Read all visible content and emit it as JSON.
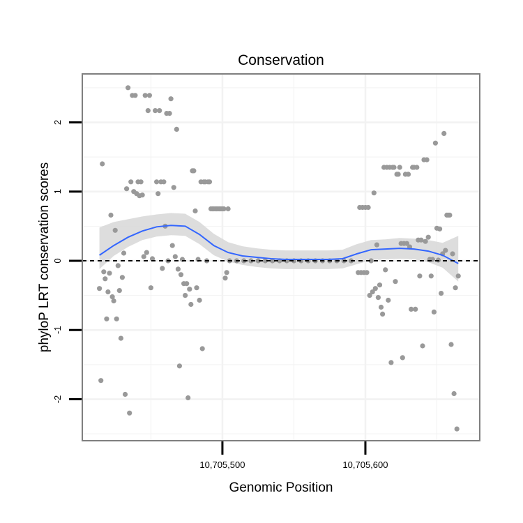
{
  "chart_data": {
    "type": "scatter",
    "title": "Conservation",
    "xlabel": "Genomic Position",
    "ylabel": "phyloP LRT conservation scores",
    "xlim": [
      10705402,
      10705680
    ],
    "ylim": [
      -2.6,
      2.7
    ],
    "x_ticks": [
      {
        "value": 10705500,
        "label": "10,705,500"
      },
      {
        "value": 10705600,
        "label": "10,705,600"
      }
    ],
    "y_ticks": [
      {
        "value": -2,
        "label": "-2"
      },
      {
        "value": -1,
        "label": "-1"
      },
      {
        "value": 0,
        "label": "0"
      },
      {
        "value": 1,
        "label": "1"
      },
      {
        "value": 2,
        "label": "2"
      }
    ],
    "x_minor_grid": [
      10705450,
      10705550,
      10705650
    ],
    "y_minor_grid": [
      -2.5,
      -1.5,
      -0.5,
      0.5,
      1.5,
      2.5
    ],
    "reference_line": {
      "y": 0,
      "style": "dashed"
    },
    "colors": {
      "points": "#999999",
      "smooth": "#3366ff",
      "ribbon": "#d9d9d9",
      "panel_border": "#7f7f7f",
      "grid": "#f2f2f2"
    },
    "points": [
      [
        10705414,
        -0.4
      ],
      [
        10705415,
        -1.73
      ],
      [
        10705416,
        1.4
      ],
      [
        10705417,
        -0.16
      ],
      [
        10705418,
        -0.26
      ],
      [
        10705419,
        -0.84
      ],
      [
        10705420,
        -0.45
      ],
      [
        10705421,
        -0.18
      ],
      [
        10705422,
        0.66
      ],
      [
        10705423,
        -0.52
      ],
      [
        10705424,
        -0.58
      ],
      [
        10705425,
        0.44
      ],
      [
        10705426,
        -0.84
      ],
      [
        10705427,
        -0.07
      ],
      [
        10705428,
        -0.43
      ],
      [
        10705429,
        -1.12
      ],
      [
        10705430,
        -0.24
      ],
      [
        10705431,
        0.11
      ],
      [
        10705432,
        -1.93
      ],
      [
        10705433,
        1.04
      ],
      [
        10705434,
        2.5
      ],
      [
        10705435,
        -2.2
      ],
      [
        10705436,
        1.14
      ],
      [
        10705437,
        2.39
      ],
      [
        10705438,
        1.0
      ],
      [
        10705439,
        2.39
      ],
      [
        10705440,
        0.97
      ],
      [
        10705441,
        1.14
      ],
      [
        10705442,
        0.94
      ],
      [
        10705443,
        1.14
      ],
      [
        10705444,
        0.95
      ],
      [
        10705445,
        0.06
      ],
      [
        10705446,
        2.39
      ],
      [
        10705447,
        0.12
      ],
      [
        10705448,
        2.17
      ],
      [
        10705449,
        2.39
      ],
      [
        10705450,
        -0.39
      ],
      [
        10705451,
        0.03
      ],
      [
        10705453,
        2.17
      ],
      [
        10705454,
        1.14
      ],
      [
        10705455,
        0.97
      ],
      [
        10705456,
        2.17
      ],
      [
        10705457,
        1.14
      ],
      [
        10705458,
        -0.11
      ],
      [
        10705459,
        1.14
      ],
      [
        10705460,
        0.5
      ],
      [
        10705461,
        2.13
      ],
      [
        10705462,
        0.0
      ],
      [
        10705463,
        2.13
      ],
      [
        10705464,
        2.34
      ],
      [
        10705465,
        0.22
      ],
      [
        10705466,
        1.06
      ],
      [
        10705467,
        0.06
      ],
      [
        10705468,
        1.9
      ],
      [
        10705469,
        -0.12
      ],
      [
        10705470,
        -1.52
      ],
      [
        10705471,
        -0.2
      ],
      [
        10705472,
        0.02
      ],
      [
        10705473,
        -0.33
      ],
      [
        10705474,
        -0.5
      ],
      [
        10705475,
        -0.33
      ],
      [
        10705476,
        -1.98
      ],
      [
        10705477,
        -0.41
      ],
      [
        10705478,
        -0.63
      ],
      [
        10705479,
        1.3
      ],
      [
        10705480,
        1.3
      ],
      [
        10705481,
        0.72
      ],
      [
        10705482,
        -0.39
      ],
      [
        10705483,
        0.02
      ],
      [
        10705484,
        -0.57
      ],
      [
        10705485,
        1.14
      ],
      [
        10705486,
        -1.27
      ],
      [
        10705487,
        1.14
      ],
      [
        10705488,
        1.14
      ],
      [
        10705489,
        0.0
      ],
      [
        10705490,
        1.14
      ],
      [
        10705491,
        1.14
      ],
      [
        10705492,
        0.75
      ],
      [
        10705493,
        0.75
      ],
      [
        10705494,
        0.75
      ],
      [
        10705495,
        0.75
      ],
      [
        10705496,
        0.75
      ],
      [
        10705497,
        0.75
      ],
      [
        10705498,
        0.75
      ],
      [
        10705499,
        0.75
      ],
      [
        10705500,
        0.75
      ],
      [
        10705501,
        0.75
      ],
      [
        10705502,
        -0.25
      ],
      [
        10705503,
        -0.17
      ],
      [
        10705504,
        0.75
      ],
      [
        10705505,
        0.0
      ],
      [
        10705510,
        0.0
      ],
      [
        10705515,
        0.0
      ],
      [
        10705520,
        0.0
      ],
      [
        10705525,
        0.0
      ],
      [
        10705530,
        0.0
      ],
      [
        10705535,
        0.0
      ],
      [
        10705540,
        0.0
      ],
      [
        10705545,
        0.0
      ],
      [
        10705550,
        0.0
      ],
      [
        10705555,
        0.0
      ],
      [
        10705560,
        0.0
      ],
      [
        10705565,
        0.0
      ],
      [
        10705570,
        0.0
      ],
      [
        10705575,
        0.0
      ],
      [
        10705580,
        0.0
      ],
      [
        10705585,
        0.0
      ],
      [
        10705590,
        0.0
      ],
      [
        10705595,
        -0.17
      ],
      [
        10705596,
        0.77
      ],
      [
        10705597,
        -0.17
      ],
      [
        10705598,
        0.77
      ],
      [
        10705599,
        -0.17
      ],
      [
        10705600,
        0.77
      ],
      [
        10705601,
        -0.17
      ],
      [
        10705602,
        0.77
      ],
      [
        10705603,
        -0.5
      ],
      [
        10705604,
        0.0
      ],
      [
        10705605,
        -0.45
      ],
      [
        10705606,
        0.98
      ],
      [
        10705607,
        -0.4
      ],
      [
        10705608,
        0.23
      ],
      [
        10705609,
        -0.53
      ],
      [
        10705610,
        -0.35
      ],
      [
        10705611,
        -0.67
      ],
      [
        10705612,
        -0.77
      ],
      [
        10705613,
        1.35
      ],
      [
        10705614,
        -0.13
      ],
      [
        10705615,
        1.35
      ],
      [
        10705616,
        -0.57
      ],
      [
        10705617,
        1.35
      ],
      [
        10705618,
        -1.47
      ],
      [
        10705619,
        1.35
      ],
      [
        10705620,
        1.35
      ],
      [
        10705621,
        -0.3
      ],
      [
        10705622,
        1.25
      ],
      [
        10705623,
        1.25
      ],
      [
        10705624,
        1.35
      ],
      [
        10705625,
        0.25
      ],
      [
        10705626,
        -1.4
      ],
      [
        10705627,
        0.25
      ],
      [
        10705628,
        1.25
      ],
      [
        10705629,
        0.25
      ],
      [
        10705630,
        1.25
      ],
      [
        10705631,
        0.2
      ],
      [
        10705632,
        -0.7
      ],
      [
        10705633,
        1.35
      ],
      [
        10705634,
        1.35
      ],
      [
        10705635,
        -0.7
      ],
      [
        10705636,
        1.35
      ],
      [
        10705637,
        0.3
      ],
      [
        10705638,
        -0.22
      ],
      [
        10705639,
        0.3
      ],
      [
        10705640,
        -1.23
      ],
      [
        10705641,
        1.46
      ],
      [
        10705642,
        0.28
      ],
      [
        10705643,
        1.46
      ],
      [
        10705644,
        0.34
      ],
      [
        10705645,
        0.02
      ],
      [
        10705646,
        -0.22
      ],
      [
        10705647,
        0.02
      ],
      [
        10705648,
        -0.74
      ],
      [
        10705649,
        1.7
      ],
      [
        10705650,
        0.47
      ],
      [
        10705651,
        0.01
      ],
      [
        10705652,
        0.46
      ],
      [
        10705653,
        -0.47
      ],
      [
        10705654,
        0.1
      ],
      [
        10705655,
        1.84
      ],
      [
        10705656,
        0.15
      ],
      [
        10705657,
        0.66
      ],
      [
        10705658,
        0.66
      ],
      [
        10705659,
        0.66
      ],
      [
        10705660,
        -1.21
      ],
      [
        10705661,
        0.1
      ],
      [
        10705662,
        -1.92
      ],
      [
        10705663,
        -0.39
      ],
      [
        10705664,
        -2.43
      ],
      [
        10705665,
        -0.22
      ]
    ],
    "smooth_x": [
      10705414,
      10705424,
      10705434,
      10705444,
      10705454,
      10705464,
      10705474,
      10705484,
      10705494,
      10705504,
      10705514,
      10705524,
      10705534,
      10705544,
      10705554,
      10705564,
      10705574,
      10705584,
      10705594,
      10705604,
      10705614,
      10705624,
      10705634,
      10705644,
      10705654,
      10705665
    ],
    "smooth_y": [
      0.08,
      0.22,
      0.34,
      0.43,
      0.49,
      0.51,
      0.5,
      0.38,
      0.22,
      0.12,
      0.07,
      0.05,
      0.03,
      0.02,
      0.02,
      0.02,
      0.02,
      0.03,
      0.1,
      0.16,
      0.17,
      0.18,
      0.17,
      0.14,
      0.08,
      -0.04
    ],
    "ribbon_lower": [
      -0.12,
      0.07,
      0.2,
      0.3,
      0.35,
      0.37,
      0.36,
      0.24,
      0.08,
      -0.01,
      -0.06,
      -0.09,
      -0.11,
      -0.12,
      -0.12,
      -0.12,
      -0.12,
      -0.11,
      -0.05,
      0.01,
      0.02,
      0.03,
      0.02,
      -0.02,
      -0.1,
      -0.3
    ],
    "ribbon_upper": [
      0.48,
      0.56,
      0.6,
      0.64,
      0.67,
      0.69,
      0.68,
      0.56,
      0.39,
      0.27,
      0.21,
      0.18,
      0.16,
      0.15,
      0.15,
      0.15,
      0.15,
      0.16,
      0.24,
      0.3,
      0.31,
      0.33,
      0.32,
      0.3,
      0.26,
      0.36
    ]
  }
}
